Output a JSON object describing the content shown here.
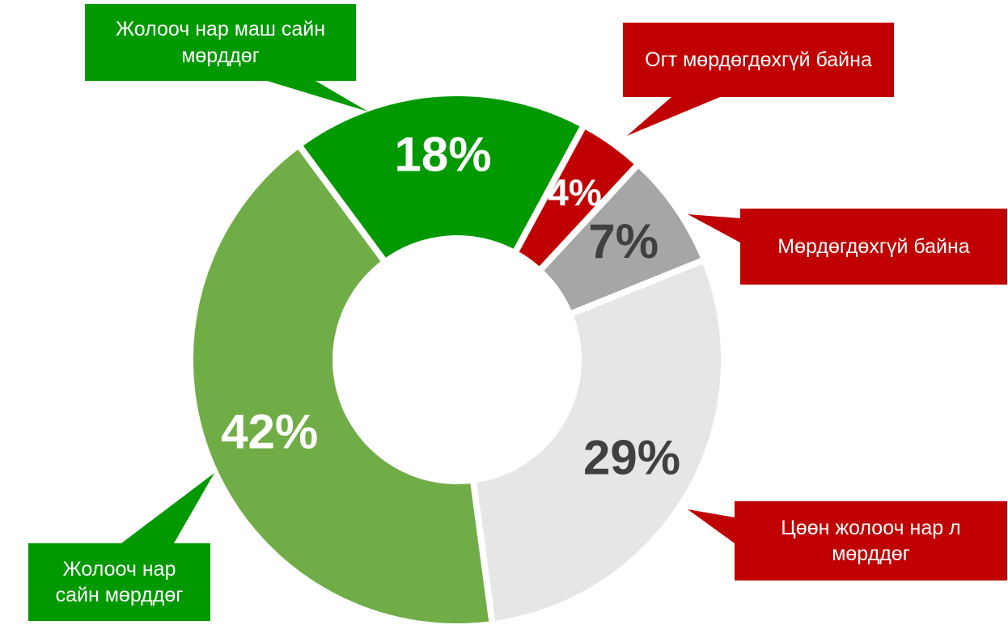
{
  "chart_data": {
    "type": "donut",
    "categories": [
      "Жолооч нар маш сайн мөрддөг",
      "Огт мөрдөгдөхгүй байна",
      "Мөрдөгдөхгүй байна",
      "Цөөн жолооч нар л мөрддөг",
      "Жолооч нар сайн мөрддөг"
    ],
    "values": [
      18,
      4,
      7,
      29,
      42
    ],
    "value_labels": [
      "18%",
      "4%",
      "7%",
      "29%",
      "42%"
    ],
    "colors": [
      "#009900",
      "#c00000",
      "#a6a6a6",
      "#e6e6e6",
      "#70ad47"
    ],
    "label_colors": [
      "#ffffff",
      "#ffffff",
      "#404040",
      "#404040",
      "#ffffff"
    ],
    "callout_colors": [
      "#009900",
      "#c00000",
      "#c00000",
      "#c00000",
      "#009900"
    ]
  }
}
